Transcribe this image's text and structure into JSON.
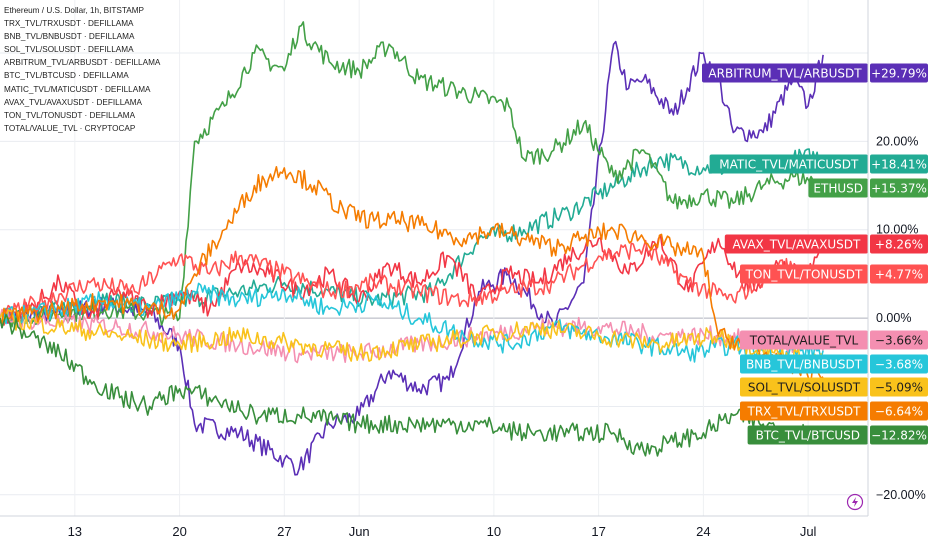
{
  "chart_data": {
    "type": "line",
    "title": "Ethereum / U.S. Dollar, 1h, BITSTAMP",
    "legend_entries": [
      "TRX_TVL/TRXUSDT · DEFILLAMA",
      "BNB_TVL/BNBUSDT · DEFILLAMA",
      "SOL_TVL/SOLUSDT · DEFILLAMA",
      "ARBITRUM_TVL/ARBUSDT · DEFILLAMA",
      "BTC_TVL/BTCUSD · DEFILLAMA",
      "MATIC_TVL/MATICUSDT · DEFILLAMA",
      "AVAX_TVL/AVAXUSDT · DEFILLAMA",
      "TON_TVL/TONUSDT · DEFILLAMA",
      "TOTAL/VALUE_TVL · CRYPTOCAP"
    ],
    "y_ticks": [
      {
        "value": 20,
        "label": "20.00%"
      },
      {
        "value": 10,
        "label": "10.00%"
      },
      {
        "value": 0,
        "label": "0.00%"
      },
      {
        "value": -20,
        "label": "−20.00%"
      }
    ],
    "ylim": [
      -22.4,
      36
    ],
    "x_ticks": [
      {
        "date": "2024-05-13",
        "label": "13"
      },
      {
        "date": "2024-05-20",
        "label": "20"
      },
      {
        "date": "2024-05-27",
        "label": "27"
      },
      {
        "date": "2024-06-01",
        "label": "Jun"
      },
      {
        "date": "2024-06-10",
        "label": "10"
      },
      {
        "date": "2024-06-17",
        "label": "17"
      },
      {
        "date": "2024-06-24",
        "label": "24"
      },
      {
        "date": "2024-07-01",
        "label": "Jul"
      }
    ],
    "xlim": [
      "2024-05-08",
      "2024-07-05"
    ],
    "grid": true,
    "series": [
      {
        "name": "ARBITRUM_TVL/ARBUSDT",
        "color": "#5b2fb6",
        "last_label": "+29.79%",
        "last_value": 29.79,
        "points": [
          [
            "2024-05-08",
            0
          ],
          [
            "2024-05-12",
            0.5
          ],
          [
            "2024-05-15",
            1.5
          ],
          [
            "2024-05-18",
            0.5
          ],
          [
            "2024-05-20",
            -3
          ],
          [
            "2024-05-21",
            -12
          ],
          [
            "2024-05-24",
            -13
          ],
          [
            "2024-05-27",
            -16
          ],
          [
            "2024-05-28",
            -17
          ],
          [
            "2024-05-30",
            -12
          ],
          [
            "2024-06-01",
            -11
          ],
          [
            "2024-06-03",
            -6
          ],
          [
            "2024-06-05",
            -8
          ],
          [
            "2024-06-07",
            -7
          ],
          [
            "2024-06-09",
            3
          ],
          [
            "2024-06-11",
            5
          ],
          [
            "2024-06-14",
            -1
          ],
          [
            "2024-06-16",
            4
          ],
          [
            "2024-06-18",
            31
          ],
          [
            "2024-06-19",
            26
          ],
          [
            "2024-06-20",
            27
          ],
          [
            "2024-06-22",
            23
          ],
          [
            "2024-06-24",
            30
          ],
          [
            "2024-06-25",
            27
          ],
          [
            "2024-06-26",
            21
          ],
          [
            "2024-06-28",
            21
          ],
          [
            "2024-06-30",
            27
          ],
          [
            "2024-07-01",
            24
          ],
          [
            "2024-07-02",
            29.79
          ]
        ]
      },
      {
        "name": "MATIC_TVL/MATICUSDT",
        "color": "#22ab94",
        "last_label": "+18.41%",
        "last_value": 18.41,
        "points": [
          [
            "2024-05-08",
            0
          ],
          [
            "2024-05-12",
            1
          ],
          [
            "2024-05-15",
            2
          ],
          [
            "2024-05-18",
            1.5
          ],
          [
            "2024-05-20",
            2
          ],
          [
            "2024-05-24",
            3
          ],
          [
            "2024-05-27",
            4
          ],
          [
            "2024-05-30",
            3
          ],
          [
            "2024-06-02",
            2
          ],
          [
            "2024-06-06",
            3
          ],
          [
            "2024-06-09",
            9
          ],
          [
            "2024-06-12",
            10
          ],
          [
            "2024-06-15",
            12
          ],
          [
            "2024-06-17",
            14
          ],
          [
            "2024-06-19",
            16
          ],
          [
            "2024-06-21",
            18
          ],
          [
            "2024-06-24",
            17
          ],
          [
            "2024-06-27",
            17
          ],
          [
            "2024-06-30",
            18
          ],
          [
            "2024-07-02",
            18.41
          ]
        ]
      },
      {
        "name": "ETHUSD",
        "color": "#43a047",
        "last_label": "+15.37%",
        "last_value": 15.37,
        "points": [
          [
            "2024-05-08",
            0
          ],
          [
            "2024-05-12",
            0.5
          ],
          [
            "2024-05-15",
            1
          ],
          [
            "2024-05-18",
            0.5
          ],
          [
            "2024-05-20",
            0
          ],
          [
            "2024-05-21",
            20
          ],
          [
            "2024-05-23",
            24
          ],
          [
            "2024-05-25",
            30
          ],
          [
            "2024-05-27",
            28
          ],
          [
            "2024-05-28",
            33
          ],
          [
            "2024-05-30",
            29
          ],
          [
            "2024-06-01",
            28
          ],
          [
            "2024-06-03",
            31
          ],
          [
            "2024-06-05",
            27
          ],
          [
            "2024-06-07",
            26
          ],
          [
            "2024-06-09",
            25
          ],
          [
            "2024-06-11",
            24
          ],
          [
            "2024-06-12",
            18
          ],
          [
            "2024-06-14",
            19
          ],
          [
            "2024-06-16",
            22
          ],
          [
            "2024-06-18",
            16
          ],
          [
            "2024-06-20",
            19
          ],
          [
            "2024-06-22",
            13
          ],
          [
            "2024-06-24",
            14
          ],
          [
            "2024-06-26",
            13
          ],
          [
            "2024-06-28",
            15
          ],
          [
            "2024-06-30",
            16
          ],
          [
            "2024-07-02",
            15.37
          ]
        ]
      },
      {
        "name": "AVAX_TVL/AVAXUSDT",
        "color": "#f23645",
        "last_label": "+8.26%",
        "last_value": 8.26,
        "points": [
          [
            "2024-05-08",
            0
          ],
          [
            "2024-05-10",
            1
          ],
          [
            "2024-05-12",
            4
          ],
          [
            "2024-05-14",
            0
          ],
          [
            "2024-05-16",
            3
          ],
          [
            "2024-05-18",
            1
          ],
          [
            "2024-05-20",
            3
          ],
          [
            "2024-05-22",
            1
          ],
          [
            "2024-05-24",
            6
          ],
          [
            "2024-05-26",
            5
          ],
          [
            "2024-05-28",
            3
          ],
          [
            "2024-05-30",
            5
          ],
          [
            "2024-06-01",
            2
          ],
          [
            "2024-06-03",
            6
          ],
          [
            "2024-06-05",
            4
          ],
          [
            "2024-06-07",
            7
          ],
          [
            "2024-06-09",
            2
          ],
          [
            "2024-06-11",
            5
          ],
          [
            "2024-06-13",
            4
          ],
          [
            "2024-06-15",
            7
          ],
          [
            "2024-06-17",
            9
          ],
          [
            "2024-06-19",
            5
          ],
          [
            "2024-06-21",
            9
          ],
          [
            "2024-06-23",
            3
          ],
          [
            "2024-06-25",
            9
          ],
          [
            "2024-06-27",
            3
          ],
          [
            "2024-06-29",
            6
          ],
          [
            "2024-07-01",
            5
          ],
          [
            "2024-07-02",
            8.26
          ]
        ]
      },
      {
        "name": "TON_TVL/TONUSDT",
        "color": "#ff5252",
        "last_label": "+4.77%",
        "last_value": 4.77,
        "points": [
          [
            "2024-05-08",
            0
          ],
          [
            "2024-05-11",
            2
          ],
          [
            "2024-05-14",
            4
          ],
          [
            "2024-05-17",
            3
          ],
          [
            "2024-05-20",
            7
          ],
          [
            "2024-05-22",
            5
          ],
          [
            "2024-05-24",
            7
          ],
          [
            "2024-05-27",
            5
          ],
          [
            "2024-05-30",
            3
          ],
          [
            "2024-06-02",
            4
          ],
          [
            "2024-06-05",
            3
          ],
          [
            "2024-06-08",
            2
          ],
          [
            "2024-06-11",
            3
          ],
          [
            "2024-06-14",
            4
          ],
          [
            "2024-06-17",
            7
          ],
          [
            "2024-06-20",
            8
          ],
          [
            "2024-06-23",
            4
          ],
          [
            "2024-06-26",
            2
          ],
          [
            "2024-06-29",
            6
          ],
          [
            "2024-07-02",
            4.77
          ]
        ]
      },
      {
        "name": "TOTAL/VALUE_TVL",
        "color": "#f48fb1",
        "last_label": "−3.66%",
        "last_value": -3.66,
        "points": [
          [
            "2024-05-08",
            0
          ],
          [
            "2024-05-12",
            -0.5
          ],
          [
            "2024-05-16",
            -1
          ],
          [
            "2024-05-20",
            -2
          ],
          [
            "2024-05-24",
            -3
          ],
          [
            "2024-05-28",
            -4
          ],
          [
            "2024-06-01",
            -4
          ],
          [
            "2024-06-05",
            -3
          ],
          [
            "2024-06-09",
            -2
          ],
          [
            "2024-06-13",
            -1
          ],
          [
            "2024-06-17",
            -1
          ],
          [
            "2024-06-21",
            -2
          ],
          [
            "2024-06-25",
            -2
          ],
          [
            "2024-06-29",
            -3
          ],
          [
            "2024-07-02",
            -3.66
          ]
        ]
      },
      {
        "name": "BNB_TVL/BNBUSDT",
        "color": "#26c6da",
        "last_label": "−3.68%",
        "last_value": -3.68,
        "points": [
          [
            "2024-05-08",
            0
          ],
          [
            "2024-05-12",
            1
          ],
          [
            "2024-05-15",
            2
          ],
          [
            "2024-05-18",
            1
          ],
          [
            "2024-05-21",
            3
          ],
          [
            "2024-05-24",
            2
          ],
          [
            "2024-05-27",
            3
          ],
          [
            "2024-05-30",
            1
          ],
          [
            "2024-06-02",
            2
          ],
          [
            "2024-06-05",
            0
          ],
          [
            "2024-06-08",
            -2
          ],
          [
            "2024-06-11",
            -3
          ],
          [
            "2024-06-14",
            -1
          ],
          [
            "2024-06-17",
            -2
          ],
          [
            "2024-06-20",
            -3
          ],
          [
            "2024-06-23",
            -4
          ],
          [
            "2024-06-26",
            -3
          ],
          [
            "2024-06-29",
            -4
          ],
          [
            "2024-07-02",
            -3.68
          ]
        ]
      },
      {
        "name": "SOL_TVL/SOLUSDT",
        "color": "#f9c21b",
        "last_label": "−5.09%",
        "last_value": -5.09,
        "points": [
          [
            "2024-05-08",
            0
          ],
          [
            "2024-05-12",
            -1
          ],
          [
            "2024-05-16",
            -2
          ],
          [
            "2024-05-20",
            -3
          ],
          [
            "2024-05-24",
            -2
          ],
          [
            "2024-05-28",
            -3
          ],
          [
            "2024-06-01",
            -4
          ],
          [
            "2024-06-05",
            -3
          ],
          [
            "2024-06-09",
            -2
          ],
          [
            "2024-06-13",
            -1
          ],
          [
            "2024-06-17",
            -2
          ],
          [
            "2024-06-21",
            -3
          ],
          [
            "2024-06-25",
            -2
          ],
          [
            "2024-06-29",
            -4
          ],
          [
            "2024-07-02",
            -5.09
          ]
        ]
      },
      {
        "name": "TRX_TVL/TRXUSDT",
        "color": "#f57c00",
        "last_label": "−6.64%",
        "last_value": -6.64,
        "points": [
          [
            "2024-05-08",
            0
          ],
          [
            "2024-05-12",
            1
          ],
          [
            "2024-05-15",
            2
          ],
          [
            "2024-05-18",
            1
          ],
          [
            "2024-05-20",
            1
          ],
          [
            "2024-05-21",
            5
          ],
          [
            "2024-05-23",
            10
          ],
          [
            "2024-05-25",
            15
          ],
          [
            "2024-05-27",
            17
          ],
          [
            "2024-05-29",
            15
          ],
          [
            "2024-05-31",
            12
          ],
          [
            "2024-06-02",
            11
          ],
          [
            "2024-06-04",
            11
          ],
          [
            "2024-06-06",
            10
          ],
          [
            "2024-06-08",
            9
          ],
          [
            "2024-06-10",
            10
          ],
          [
            "2024-06-12",
            9
          ],
          [
            "2024-06-14",
            8
          ],
          [
            "2024-06-16",
            9
          ],
          [
            "2024-06-18",
            10
          ],
          [
            "2024-06-20",
            9
          ],
          [
            "2024-06-22",
            8
          ],
          [
            "2024-06-24",
            7
          ],
          [
            "2024-06-25",
            -2
          ],
          [
            "2024-06-27",
            -3
          ],
          [
            "2024-06-29",
            -5
          ],
          [
            "2024-07-02",
            -6.64
          ]
        ]
      },
      {
        "name": "BTC_TVL/BTCUSD",
        "color": "#388e3c",
        "last_label": "−12.82%",
        "last_value": -12.82,
        "points": [
          [
            "2024-05-08",
            0
          ],
          [
            "2024-05-10",
            -2
          ],
          [
            "2024-05-12",
            -4
          ],
          [
            "2024-05-14",
            -7
          ],
          [
            "2024-05-16",
            -9
          ],
          [
            "2024-05-18",
            -10
          ],
          [
            "2024-05-20",
            -8
          ],
          [
            "2024-05-22",
            -9
          ],
          [
            "2024-05-25",
            -11
          ],
          [
            "2024-05-28",
            -11
          ],
          [
            "2024-06-01",
            -12
          ],
          [
            "2024-06-05",
            -12
          ],
          [
            "2024-06-09",
            -12
          ],
          [
            "2024-06-12",
            -13
          ],
          [
            "2024-06-15",
            -13
          ],
          [
            "2024-06-18",
            -13
          ],
          [
            "2024-06-20",
            -15
          ],
          [
            "2024-06-22",
            -14
          ],
          [
            "2024-06-24",
            -13
          ],
          [
            "2024-06-26",
            -11
          ],
          [
            "2024-06-28",
            -12
          ],
          [
            "2024-06-30",
            -13
          ],
          [
            "2024-07-02",
            -12.82
          ]
        ]
      }
    ]
  }
}
